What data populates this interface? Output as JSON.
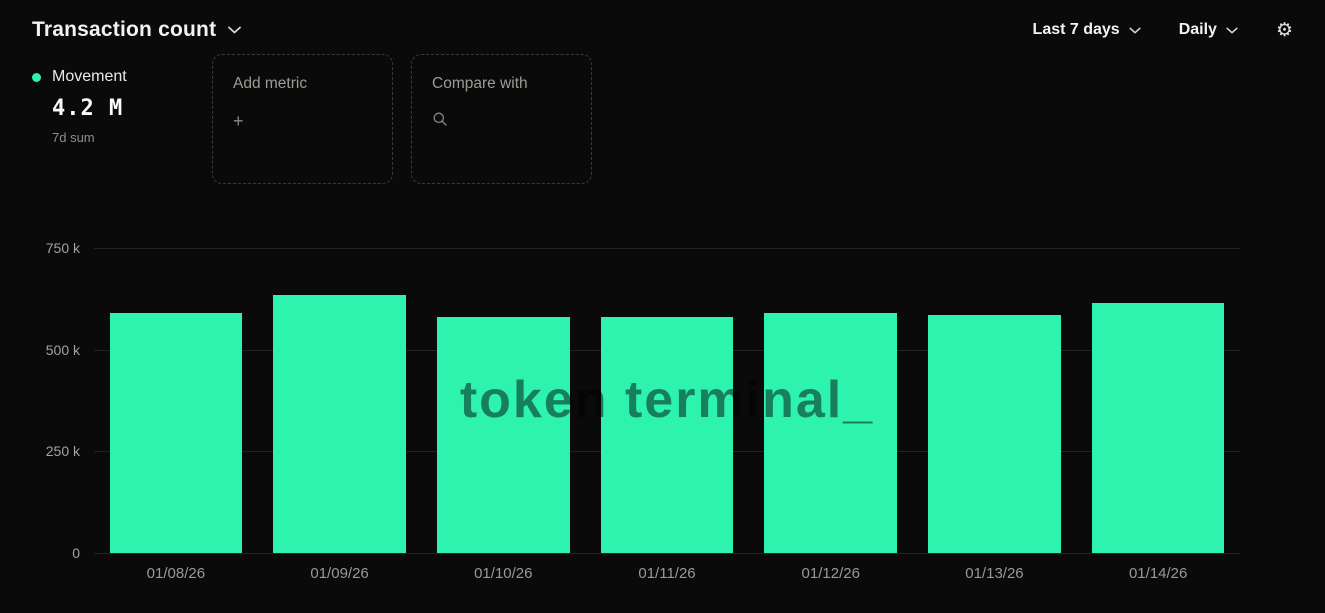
{
  "colors": {
    "background": "#0a0a0a",
    "accent": "#2df3ae",
    "grid": "#232323",
    "muted_text": "#9a9a93"
  },
  "header": {
    "title": "Transaction count",
    "range_label": "Last 7 days",
    "granularity_label": "Daily"
  },
  "icons": {
    "gear": "⚙",
    "plus": "+"
  },
  "metric": {
    "name": "Movement",
    "value": "4.2 M",
    "subtitle": "7d sum",
    "dot_color": "#2df3ae"
  },
  "actions": {
    "add_metric_label": "Add metric",
    "compare_with_label": "Compare with"
  },
  "watermark": "token terminal_",
  "chart_data": {
    "type": "bar",
    "title": "Transaction count",
    "series_name": "Movement",
    "categories": [
      "01/08/26",
      "01/09/26",
      "01/10/26",
      "01/11/26",
      "01/12/26",
      "01/13/26",
      "01/14/26"
    ],
    "values": [
      590000,
      635000,
      580000,
      580000,
      590000,
      585000,
      615000
    ],
    "total_label": "4.2 M (7d sum)",
    "ylim": [
      0,
      750000
    ],
    "y_ticks": [
      {
        "label": "750 k",
        "value": 750000
      },
      {
        "label": "500 k",
        "value": 500000
      },
      {
        "label": "250 k",
        "value": 250000
      },
      {
        "label": "0",
        "value": 0
      }
    ],
    "bar_color": "#2df3ae",
    "grid": true,
    "xlabel": "",
    "ylabel": "",
    "legend_position": "top-left"
  }
}
